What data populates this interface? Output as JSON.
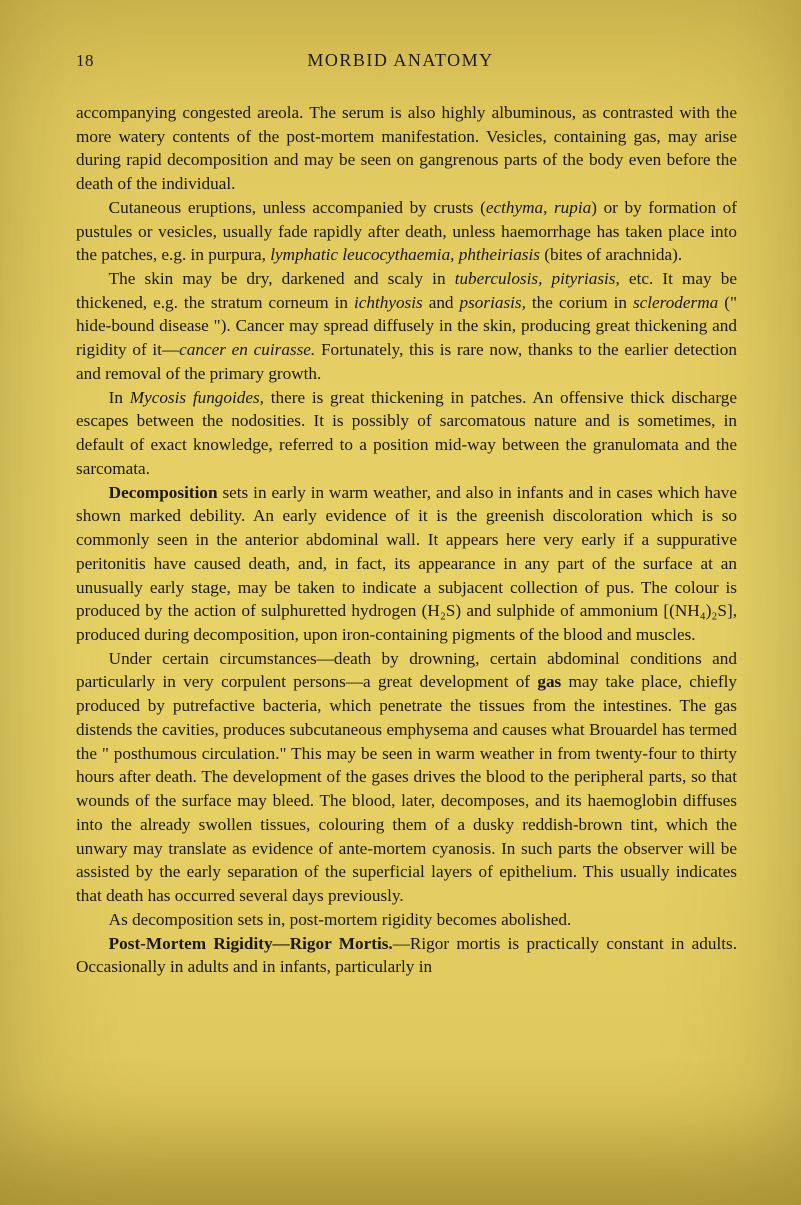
{
  "header": {
    "page_number": "18",
    "running_title": "MORBID ANATOMY"
  },
  "body": {
    "p1_a": "accompanying congested areola. The serum is also highly albuminous, as contrasted with the more watery contents of the post-mortem manifestation. Vesicles, containing gas, may arise during rapid decomposition and may be seen on gangrenous parts of the body even before the death of the individual.",
    "p2_a": "Cutaneous eruptions, unless accompanied by crusts (",
    "p2_i1": "ecthyma, rupia",
    "p2_b": ") or by formation of pustules or vesicles, usually fade rapidly after death, unless haemorrhage has taken place into the patches, e.g. in purpura, ",
    "p2_i2": "lymphatic leucocythaemia, phtheiriasis",
    "p2_c": " (bites of arachnida).",
    "p3_a": "The skin may be dry, darkened and scaly in ",
    "p3_i1": "tuberculosis, pityriasis,",
    "p3_b": " etc. It may be thickened, e.g. the stratum corneum in ",
    "p3_i2": "ichthyosis",
    "p3_c": " and ",
    "p3_i3": "psoriasis,",
    "p3_d": " the corium in ",
    "p3_i4": "scleroderma",
    "p3_e": " (\" hide-bound disease \"). Cancer may spread diffusely in the skin, producing great thickening and rigidity of it—",
    "p3_i5": "cancer en cuirasse.",
    "p3_f": " Fortunately, this is rare now, thanks to the earlier detection and removal of the primary growth.",
    "p4_a": "In ",
    "p4_i1": "Mycosis fungoides,",
    "p4_b": " there is great thickening in patches. An offensive thick discharge escapes between the nodosities. It is possibly of sarcoma­tous nature and is sometimes, in default of exact knowledge, referred to a position mid-way between the granulomata and the sarcomata.",
    "p5_bold": "Decomposition",
    "p5_a": " sets in early in warm weather, and also in infants and in cases which have shown marked debility. An early evidence of it is the greenish discoloration which is so commonly seen in the anterior abdo­minal wall. It appears here very early if a suppurative peritonitis have caused death, and, in fact, its appearance in any part of the surface at an unusually early stage, may be taken to indicate a subjacent collection of pus. The colour is produced by the action of sulphuretted hydrogen (H₂S) and sulphide of ammonium [(NH₄)₂S], produced during decomposition, upon iron-containing pigments of the blood and muscles.",
    "p6_a": "Under certain circumstances—death by drowning, certain abdominal conditions and particularly in very corpulent persons—a great development of ",
    "p6_bold": "gas",
    "p6_b": " may take place, chiefly produced by putrefactive bacteria, which penetrate the tissues from the intestines. The gas distends the cavities, produces subcutaneous emphysema and causes what Brouardel has termed the \" posthumous circulation.\" This may be seen in warm weather in from twenty-four to thirty hours after death. The development of the gases drives the blood to the peripheral parts, so that wounds of the surface may bleed. The blood, later, decomposes, and its haemoglobin diffuses into the already swollen tissues, colouring them of a dusky reddish-brown tint, which the unwary may translate as evidence of ante-mortem cyanosis. In such parts the observer will be assisted by the early separation of the superficial layers of epithelium. This usually indicates that death has occurred several days previously.",
    "p7_a": "As decomposition sets in, post-mortem rigidity becomes abolished.",
    "p8_bold": "Post-Mortem Rigidity—Rigor Mortis.",
    "p8_a": "—Rigor mortis is practically con­stant in adults. Occasionally in adults and in infants, particularly in"
  }
}
